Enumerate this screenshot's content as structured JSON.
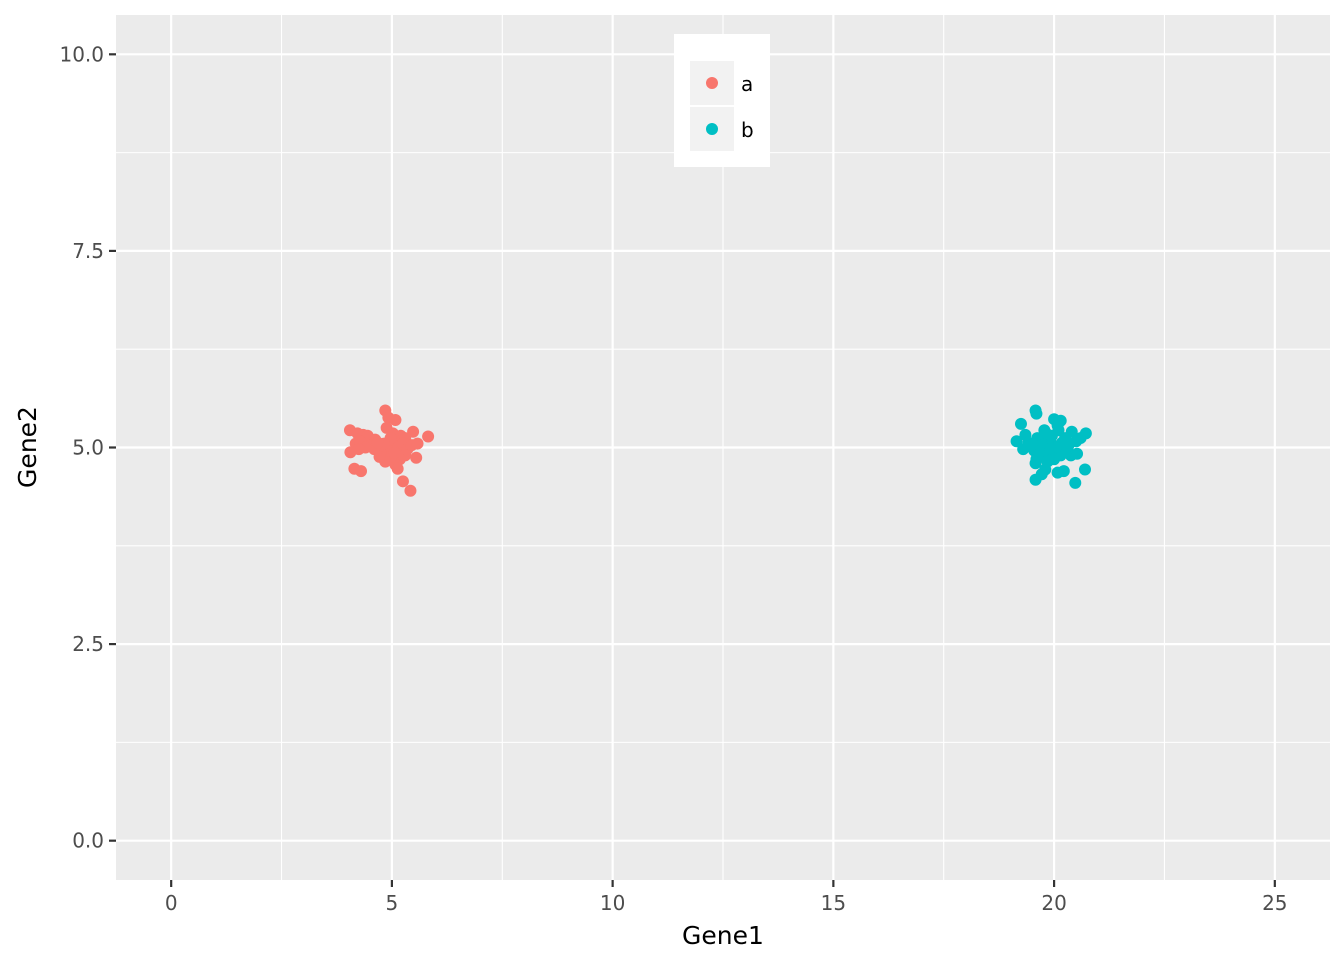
{
  "chart_data": {
    "type": "scatter",
    "xlabel": "Gene1",
    "ylabel": "Gene2",
    "xlim": [
      -1.25,
      26.25
    ],
    "ylim": [
      -0.5,
      10.5
    ],
    "x_ticks": [
      0,
      5,
      10,
      15,
      20,
      25
    ],
    "x_tick_labels": [
      "0",
      "5",
      "10",
      "15",
      "20",
      "25"
    ],
    "y_ticks": [
      0,
      2.5,
      5,
      7.5,
      10
    ],
    "y_tick_labels": [
      "0.0",
      "2.5",
      "5.0",
      "7.5",
      "10.0"
    ],
    "grid": true,
    "legend_position": "top-center",
    "background": "#ebebeb",
    "series": [
      {
        "name": "a",
        "color": "#f8766d",
        "points": [
          [
            4.85,
            5.47
          ],
          [
            4.92,
            5.38
          ],
          [
            5.08,
            5.35
          ],
          [
            4.05,
            5.22
          ],
          [
            4.22,
            5.18
          ],
          [
            4.35,
            5.16
          ],
          [
            4.45,
            5.15
          ],
          [
            4.18,
            5.05
          ],
          [
            4.28,
            5.08
          ],
          [
            4.55,
            5.05
          ],
          [
            4.62,
            5.1
          ],
          [
            4.7,
            5.0
          ],
          [
            4.8,
            4.98
          ],
          [
            4.9,
            5.02
          ],
          [
            5.0,
            5.08
          ],
          [
            5.1,
            5.12
          ],
          [
            5.2,
            5.15
          ],
          [
            5.3,
            5.12
          ],
          [
            5.48,
            5.2
          ],
          [
            5.82,
            5.14
          ],
          [
            4.88,
            5.25
          ],
          [
            5.02,
            5.18
          ],
          [
            4.95,
            4.95
          ],
          [
            4.75,
            4.92
          ],
          [
            4.6,
            4.98
          ],
          [
            4.5,
            5.02
          ],
          [
            4.4,
            5.0
          ],
          [
            4.25,
            4.98
          ],
          [
            4.06,
            4.94
          ],
          [
            5.15,
            5.0
          ],
          [
            5.25,
            5.05
          ],
          [
            5.35,
            4.98
          ],
          [
            5.45,
            5.03
          ],
          [
            5.58,
            5.05
          ],
          [
            5.55,
            4.87
          ],
          [
            5.3,
            4.9
          ],
          [
            5.18,
            4.85
          ],
          [
            5.08,
            4.78
          ],
          [
            5.13,
            4.73
          ],
          [
            4.98,
            4.88
          ],
          [
            4.85,
            4.82
          ],
          [
            4.72,
            4.88
          ],
          [
            4.15,
            4.73
          ],
          [
            4.3,
            4.7
          ],
          [
            5.25,
            4.57
          ],
          [
            5.42,
            4.45
          ],
          [
            4.97,
            5.12
          ],
          [
            4.82,
            5.05
          ],
          [
            5.05,
            4.93
          ],
          [
            4.68,
            5.06
          ]
        ]
      },
      {
        "name": "b",
        "color": "#00bfc4",
        "points": [
          [
            19.58,
            5.47
          ],
          [
            19.6,
            5.43
          ],
          [
            20.0,
            5.36
          ],
          [
            20.15,
            5.34
          ],
          [
            19.25,
            5.3
          ],
          [
            19.78,
            5.22
          ],
          [
            20.1,
            5.22
          ],
          [
            20.4,
            5.2
          ],
          [
            20.72,
            5.18
          ],
          [
            19.35,
            5.16
          ],
          [
            19.62,
            5.12
          ],
          [
            19.88,
            5.1
          ],
          [
            20.25,
            5.12
          ],
          [
            20.6,
            5.12
          ],
          [
            19.15,
            5.08
          ],
          [
            19.42,
            5.06
          ],
          [
            19.7,
            5.03
          ],
          [
            19.95,
            5.04
          ],
          [
            20.2,
            5.02
          ],
          [
            20.5,
            5.08
          ],
          [
            19.3,
            4.98
          ],
          [
            19.55,
            4.96
          ],
          [
            19.8,
            4.95
          ],
          [
            20.05,
            4.98
          ],
          [
            20.3,
            4.95
          ],
          [
            19.68,
            4.92
          ],
          [
            19.9,
            4.92
          ],
          [
            20.15,
            4.9
          ],
          [
            20.38,
            4.9
          ],
          [
            20.52,
            4.92
          ],
          [
            19.6,
            4.85
          ],
          [
            19.75,
            4.88
          ],
          [
            20.0,
            4.85
          ],
          [
            19.58,
            4.8
          ],
          [
            19.85,
            4.82
          ],
          [
            19.8,
            4.72
          ],
          [
            20.08,
            4.68
          ],
          [
            20.22,
            4.7
          ],
          [
            20.7,
            4.72
          ],
          [
            19.72,
            4.66
          ],
          [
            19.58,
            4.59
          ],
          [
            20.48,
            4.55
          ],
          [
            20.08,
            5.28
          ],
          [
            19.82,
            5.18
          ],
          [
            20.18,
            5.06
          ],
          [
            19.95,
            5.15
          ],
          [
            20.32,
            5.02
          ],
          [
            19.48,
            5.03
          ],
          [
            20.05,
            5.0
          ],
          [
            19.92,
            4.99
          ]
        ]
      }
    ]
  }
}
